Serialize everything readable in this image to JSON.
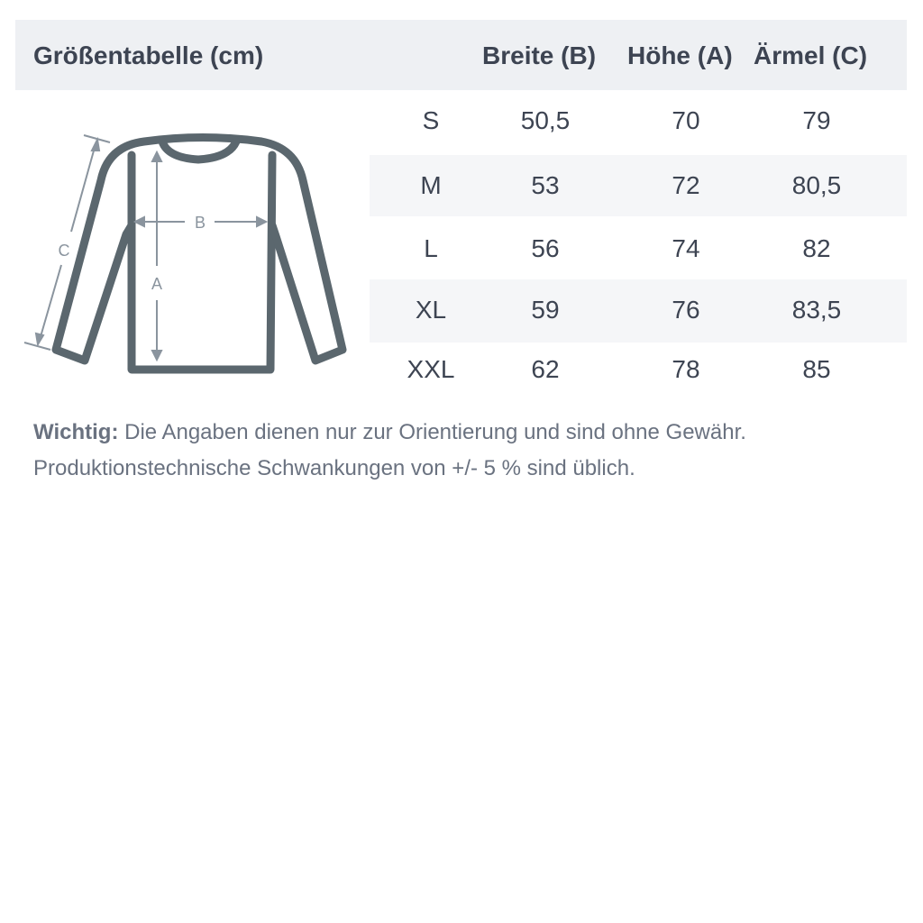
{
  "title": "Größentabelle (cm)",
  "columns": [
    "Breite (B)",
    "Höhe (A)",
    "Ärmel (C)"
  ],
  "rows": [
    {
      "size": "S",
      "b": "50,5",
      "a": "70",
      "c": "79"
    },
    {
      "size": "M",
      "b": "53",
      "a": "72",
      "c": "80,5"
    },
    {
      "size": "L",
      "b": "56",
      "a": "74",
      "c": "82"
    },
    {
      "size": "XL",
      "b": "59",
      "a": "76",
      "c": "83,5"
    },
    {
      "size": "XXL",
      "b": "62",
      "a": "78",
      "c": "85"
    }
  ],
  "diagram": {
    "label_a": "A",
    "label_b": "B",
    "label_c": "C",
    "icon": "sweatshirt-icon"
  },
  "note": {
    "label": "Wichtig:",
    "line1": " Die Angaben dienen nur zur Orientierung und sind ohne Gewähr.",
    "line2": "Produktionstechnische Schwankungen von +/- 5 % sind üblich."
  },
  "colors": {
    "header_bg": "#eef0f3",
    "stripe": "#f5f6f8",
    "text": "#3d4452",
    "garment": "#5b676e",
    "measure": "#8a949e"
  }
}
